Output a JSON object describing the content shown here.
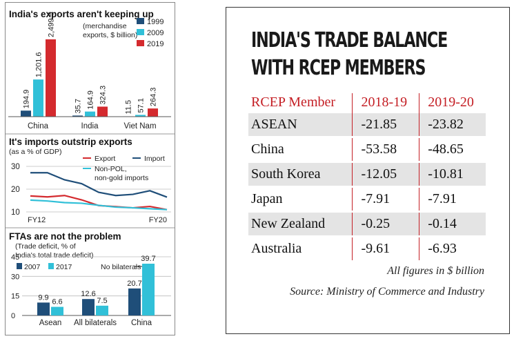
{
  "left": {
    "chart1": {
      "title": "India's exports aren't keeping up",
      "subtitle_line1": "(merchandise",
      "subtitle_line2": "exports, $ billion)"
    },
    "chart2": {
      "title": "It's imports outstrip exports",
      "subtitle": "(as a % of GDP)"
    },
    "chart3": {
      "title": "FTAs are not the problem",
      "subtitle_line1": "(Trade deficit, % of",
      "subtitle_line2": "India's total trade deficit)",
      "annotation": "No bilaterals"
    }
  },
  "right": {
    "title_line1": "INDIA'S TRADE BALANCE",
    "title_line2": "WITH RCEP MEMBERS",
    "note": "All figures in $ billion",
    "source": "Source: Ministry of Commerce and Industry"
  },
  "chart_data": [
    {
      "type": "bar",
      "title": "India's exports aren't keeping up",
      "categories": [
        "China",
        "India",
        "Viet Nam"
      ],
      "series": [
        {
          "name": "1999",
          "values": [
            194.9,
            35.7,
            11.5
          ],
          "labels": [
            "194.9",
            "35.7",
            "11.5"
          ],
          "color": "#1f4e79"
        },
        {
          "name": "2009",
          "values": [
            1201.6,
            164.9,
            57.1
          ],
          "labels": [
            "1,201.6",
            "164.9",
            "57.1"
          ],
          "color": "#31c0d8"
        },
        {
          "name": "2019",
          "values": [
            2499.5,
            324.3,
            264.3
          ],
          "labels": [
            "2,499.5",
            "324.3",
            "264.3"
          ],
          "color": "#d42a2e"
        }
      ]
    },
    {
      "type": "line",
      "title": "It's imports outstrip exports",
      "ylabel": "(as a % of GDP)",
      "x_tick_labels": [
        "FY12",
        "FY20"
      ],
      "x": [
        "FY12",
        "FY13",
        "FY14",
        "FY15",
        "FY16",
        "FY17",
        "FY18",
        "FY19",
        "FY20"
      ],
      "yticks": [
        "30",
        "20",
        "10"
      ],
      "ylim": [
        10,
        30
      ],
      "series": [
        {
          "name": "Export",
          "values": [
            17,
            16.6,
            17.2,
            15.3,
            12.8,
            12.3,
            11.8,
            12.4,
            11.0
          ],
          "color": "#d42a2e"
        },
        {
          "name": "Import",
          "values": [
            27.2,
            27.2,
            24.1,
            22.4,
            18.6,
            17.2,
            17.7,
            19.3,
            16.5
          ],
          "color": "#1f4e79"
        },
        {
          "name": "Non-POL, non-gold imports",
          "label_line1": "Non-POL,",
          "label_line2": "non-gold imports",
          "values": [
            15.2,
            14.8,
            14.1,
            13.8,
            12.9,
            12.1,
            11.8,
            11.4,
            11.0
          ],
          "color": "#31c0d8"
        }
      ]
    },
    {
      "type": "bar",
      "title": "FTAs are not the problem",
      "categories": [
        "Asean",
        "All bilaterals",
        "China"
      ],
      "yticks": [
        "45",
        "30",
        "15",
        "0"
      ],
      "ylim": [
        0,
        45
      ],
      "series": [
        {
          "name": "2007",
          "values": [
            9.9,
            12.6,
            20.7
          ],
          "labels": [
            "9.9",
            "12.6",
            "20.7"
          ],
          "color": "#1f4e79"
        },
        {
          "name": "2017",
          "values": [
            6.6,
            7.5,
            39.7
          ],
          "labels": [
            "6.6",
            "7.5",
            "39.7"
          ],
          "color": "#31c0d8"
        }
      ]
    },
    {
      "type": "table",
      "title": "INDIA'S TRADE BALANCE WITH RCEP MEMBERS",
      "columns": [
        "RCEP Member",
        "2018-19",
        "2019-20"
      ],
      "rows": [
        [
          "ASEAN",
          "-21.85",
          "-23.82"
        ],
        [
          "China",
          "-53.58",
          "-48.65"
        ],
        [
          "South Korea",
          "-12.05",
          "-10.81"
        ],
        [
          "Japan",
          "-7.91",
          "-7.91"
        ],
        [
          "New Zealand",
          "-0.25",
          "-0.14"
        ],
        [
          "Australia",
          "-9.61",
          "-6.93"
        ]
      ]
    }
  ]
}
